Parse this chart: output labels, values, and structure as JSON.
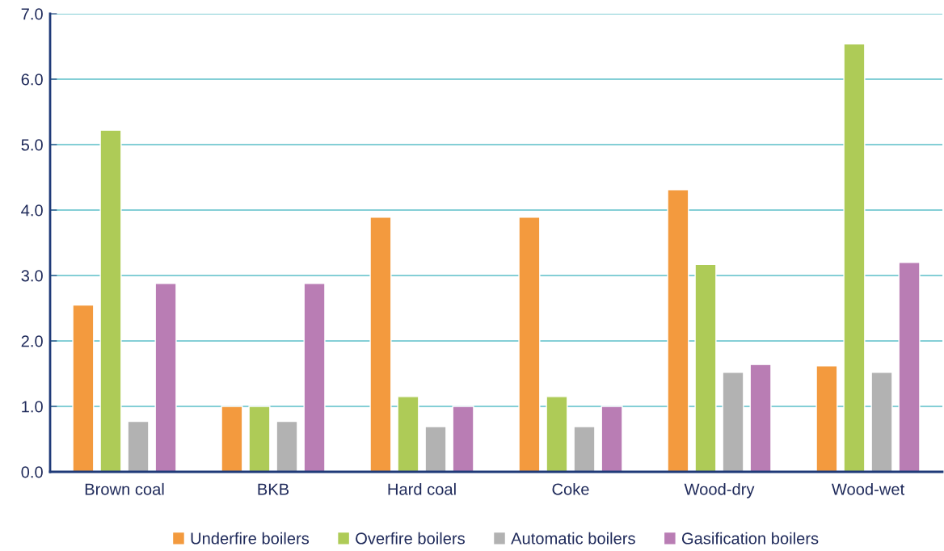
{
  "chart_data": {
    "type": "bar",
    "categories": [
      "Brown coal",
      "BKB",
      "Hard coal",
      "Coke",
      "Wood-dry",
      "Wood-wet"
    ],
    "series": [
      {
        "name": "Underfire boilers",
        "color": "#f39a3e",
        "values": [
          2.55,
          1.0,
          3.89,
          3.89,
          4.31,
          1.62
        ]
      },
      {
        "name": "Overfire boilers",
        "color": "#aecb57",
        "values": [
          5.22,
          1.0,
          1.15,
          1.15,
          3.17,
          6.54
        ]
      },
      {
        "name": "Automatic boilers",
        "color": "#b2b2b2",
        "values": [
          0.77,
          0.77,
          0.69,
          0.69,
          1.52,
          1.52
        ]
      },
      {
        "name": "Gasification boilers",
        "color": "#b97db4",
        "values": [
          2.88,
          2.88,
          1.0,
          1.0,
          1.64,
          3.2
        ]
      }
    ],
    "ylim": [
      0,
      7
    ],
    "yticks": [
      {
        "value": 0,
        "label": "0.0"
      },
      {
        "value": 1,
        "label": "1.0"
      },
      {
        "value": 2,
        "label": "2.0"
      },
      {
        "value": 3,
        "label": "3.0"
      },
      {
        "value": 4,
        "label": "4.0"
      },
      {
        "value": 5,
        "label": "5.0"
      },
      {
        "value": 6,
        "label": "6.0"
      },
      {
        "value": 7,
        "label": "7.0"
      }
    ],
    "grid": "y",
    "legend": "bottom"
  }
}
